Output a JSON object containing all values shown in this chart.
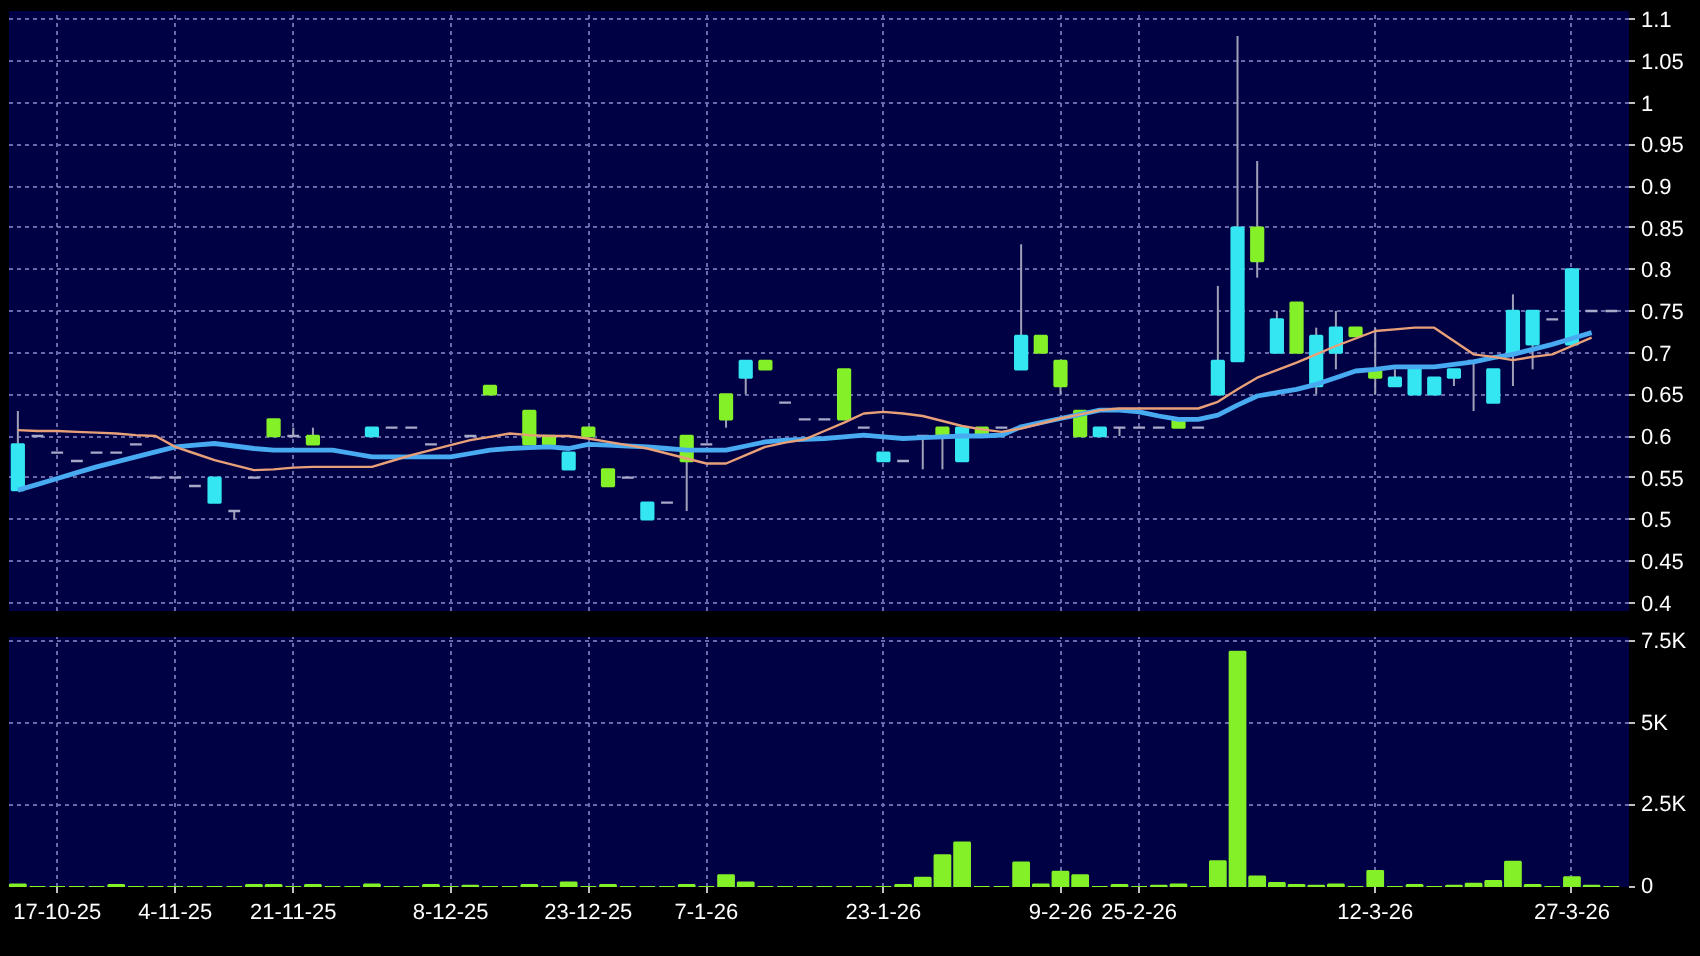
{
  "chart_data": [
    {
      "type": "candlestick",
      "categories": [
        null,
        null,
        null,
        null,
        null,
        null,
        null,
        null,
        null,
        null,
        null,
        null,
        null,
        null,
        null,
        null,
        null,
        null,
        null,
        null,
        null,
        null,
        null,
        null,
        null,
        null,
        null,
        null,
        null,
        null,
        null,
        null,
        null,
        null,
        null,
        null,
        null,
        null,
        null,
        null,
        null,
        null,
        null,
        null,
        null,
        null,
        null,
        null,
        null,
        null,
        null,
        null,
        null,
        null,
        null,
        null,
        null,
        null,
        null,
        null,
        null,
        null,
        null,
        null,
        null,
        null,
        null,
        null,
        null,
        null,
        null,
        null,
        null,
        null,
        null,
        null,
        null,
        null,
        null,
        null,
        null,
        null
      ],
      "ohlc": [
        [
          0.535,
          0.63,
          0.535,
          0.59
        ],
        [
          0.6,
          0.6,
          0.6,
          0.6
        ],
        [
          0.58,
          0.58,
          0.58,
          0.58
        ],
        [
          0.57,
          0.57,
          0.57,
          0.57
        ],
        [
          0.58,
          0.58,
          0.58,
          0.58
        ],
        [
          0.58,
          0.58,
          0.58,
          0.58
        ],
        [
          0.59,
          0.59,
          0.59,
          0.59
        ],
        [
          0.55,
          0.55,
          0.55,
          0.55
        ],
        [
          0.55,
          0.55,
          0.55,
          0.55
        ],
        [
          0.54,
          0.54,
          0.54,
          0.54
        ],
        [
          0.52,
          0.55,
          0.52,
          0.55
        ],
        [
          0.51,
          0.51,
          0.5,
          0.51
        ],
        [
          0.55,
          0.55,
          0.55,
          0.55
        ],
        [
          0.62,
          0.62,
          0.6,
          0.6
        ],
        [
          0.6,
          0.61,
          0.6,
          0.6
        ],
        [
          0.6,
          0.61,
          0.59,
          0.59
        ],
        null,
        null,
        [
          0.6,
          0.61,
          0.6,
          0.61
        ],
        [
          0.61,
          0.61,
          0.61,
          0.61
        ],
        [
          0.61,
          0.61,
          0.61,
          0.61
        ],
        [
          0.59,
          0.59,
          0.59,
          0.59
        ],
        null,
        [
          0.6,
          0.6,
          0.6,
          0.6
        ],
        [
          0.66,
          0.66,
          0.65,
          0.65
        ],
        null,
        [
          0.63,
          0.63,
          0.59,
          0.59
        ],
        [
          0.6,
          0.6,
          0.59,
          0.59
        ],
        [
          0.56,
          0.58,
          0.56,
          0.58
        ],
        [
          0.61,
          0.61,
          0.6,
          0.6
        ],
        [
          0.56,
          0.56,
          0.54,
          0.54
        ],
        [
          0.55,
          0.55,
          0.55,
          0.55
        ],
        [
          0.5,
          0.52,
          0.5,
          0.52
        ],
        [
          0.52,
          0.52,
          0.52,
          0.52
        ],
        [
          0.6,
          0.6,
          0.51,
          0.57
        ],
        [
          0.59,
          0.59,
          0.59,
          0.59
        ],
        [
          0.65,
          0.65,
          0.61,
          0.62
        ],
        [
          0.67,
          0.69,
          0.65,
          0.69
        ],
        [
          0.69,
          0.69,
          0.68,
          0.68
        ],
        [
          0.64,
          0.64,
          0.64,
          0.64
        ],
        [
          0.62,
          0.62,
          0.62,
          0.62
        ],
        [
          0.62,
          0.62,
          0.62,
          0.62
        ],
        [
          0.68,
          0.68,
          0.62,
          0.62
        ],
        [
          0.61,
          0.61,
          0.61,
          0.61
        ],
        [
          0.57,
          0.58,
          0.57,
          0.58
        ],
        [
          0.57,
          0.57,
          0.57,
          0.57
        ],
        [
          0.6,
          0.6,
          0.56,
          0.6
        ],
        [
          0.61,
          0.61,
          0.56,
          0.6
        ],
        [
          0.57,
          0.61,
          0.57,
          0.61
        ],
        [
          0.61,
          0.61,
          0.6,
          0.6
        ],
        [
          0.61,
          0.61,
          0.61,
          0.61
        ],
        [
          0.68,
          0.83,
          0.68,
          0.72
        ],
        [
          0.72,
          0.72,
          0.7,
          0.7
        ],
        [
          0.69,
          0.69,
          0.65,
          0.66
        ],
        [
          0.63,
          0.63,
          0.6,
          0.6
        ],
        [
          0.6,
          0.61,
          0.6,
          0.61
        ],
        [
          0.61,
          0.61,
          0.6,
          0.61
        ],
        [
          0.61,
          0.61,
          0.61,
          0.61
        ],
        [
          0.61,
          0.61,
          0.61,
          0.61
        ],
        [
          0.62,
          0.62,
          0.61,
          0.61
        ],
        [
          0.61,
          0.61,
          0.61,
          0.61
        ],
        [
          0.65,
          0.78,
          0.65,
          0.69
        ],
        [
          0.69,
          1.08,
          0.69,
          0.85
        ],
        [
          0.85,
          0.93,
          0.79,
          0.81
        ],
        [
          0.7,
          0.75,
          0.7,
          0.74
        ],
        [
          0.76,
          0.76,
          0.7,
          0.7
        ],
        [
          0.66,
          0.73,
          0.65,
          0.72
        ],
        [
          0.7,
          0.75,
          0.68,
          0.73
        ],
        [
          0.73,
          0.73,
          0.72,
          0.72
        ],
        [
          0.68,
          0.73,
          0.65,
          0.67
        ],
        [
          0.66,
          0.68,
          0.66,
          0.67
        ],
        [
          0.65,
          0.68,
          0.65,
          0.68
        ],
        [
          0.65,
          0.67,
          0.65,
          0.67
        ],
        [
          0.67,
          0.68,
          0.66,
          0.68
        ],
        [
          0.69,
          0.69,
          0.63,
          0.69
        ],
        [
          0.64,
          0.68,
          0.64,
          0.68
        ],
        [
          0.7,
          0.77,
          0.66,
          0.75
        ],
        [
          0.71,
          0.75,
          0.68,
          0.75
        ],
        [
          0.74,
          0.74,
          0.74,
          0.74
        ],
        [
          0.71,
          0.8,
          0.71,
          0.8
        ],
        [
          0.75,
          0.75,
          0.75,
          0.75
        ],
        [
          0.75,
          0.75,
          0.75,
          0.75
        ]
      ],
      "colors": [
        "#33e6f2",
        "#a8a8c8",
        "#a8a8c8",
        "#a8a8c8",
        "#a8a8c8",
        "#a8a8c8",
        "#a8a8c8",
        "#a8a8c8",
        "#a8a8c8",
        "#a8a8c8",
        "#33e6f2",
        "#a8a8c8",
        "#a8a8c8",
        "#84f028",
        "#a8a8c8",
        "#84f028",
        null,
        null,
        "#33e6f2",
        "#a8a8c8",
        "#a8a8c8",
        "#a8a8c8",
        null,
        "#a8a8c8",
        "#84f028",
        null,
        "#84f028",
        "#84f028",
        "#33e6f2",
        "#84f028",
        "#84f028",
        "#a8a8c8",
        "#33e6f2",
        "#a8a8c8",
        "#84f028",
        "#a8a8c8",
        "#84f028",
        "#33e6f2",
        "#84f028",
        "#a8a8c8",
        "#a8a8c8",
        "#a8a8c8",
        "#84f028",
        "#a8a8c8",
        "#33e6f2",
        "#a8a8c8",
        "#a8a8c8",
        "#84f028",
        "#33e6f2",
        "#84f028",
        "#a8a8c8",
        "#33e6f2",
        "#84f028",
        "#84f028",
        "#84f028",
        "#33e6f2",
        "#a8a8c8",
        "#a8a8c8",
        "#a8a8c8",
        "#84f028",
        "#a8a8c8",
        "#33e6f2",
        "#33e6f2",
        "#84f028",
        "#33e6f2",
        "#84f028",
        "#33e6f2",
        "#33e6f2",
        "#84f028",
        "#84f028",
        "#33e6f2",
        "#33e6f2",
        "#33e6f2",
        "#33e6f2",
        "#a8a8c8",
        "#33e6f2",
        "#33e6f2",
        "#33e6f2",
        "#a8a8c8",
        "#33e6f2",
        "#a8a8c8",
        "#a8a8c8"
      ],
      "series": [
        {
          "type": "line",
          "color": "#48aaf0",
          "values": [
            0.535,
            0.542,
            0.549,
            0.556,
            0.563,
            0.569,
            0.575,
            0.581,
            0.587,
            0.589,
            0.591,
            0.588,
            0.585,
            0.583,
            0.583,
            0.583,
            0.583,
            0.579,
            0.575,
            0.575,
            0.575,
            0.575,
            0.575,
            0.579,
            0.583,
            0.585,
            0.586,
            0.587,
            0.585,
            0.59,
            0.589,
            0.588,
            0.587,
            0.585,
            0.583,
            0.583,
            0.583,
            0.588,
            0.593,
            0.595,
            0.596,
            0.597,
            0.599,
            0.601,
            0.599,
            0.597,
            0.598,
            0.599,
            0.6,
            0.6,
            0.601,
            0.611,
            0.616,
            0.621,
            0.626,
            0.631,
            0.631,
            0.629,
            0.624,
            0.62,
            0.62,
            0.625,
            0.637,
            0.648,
            0.652,
            0.656,
            0.662,
            0.67,
            0.678,
            0.68,
            0.683,
            0.683,
            0.683,
            0.686,
            0.689,
            0.694,
            0.698,
            0.704,
            0.71,
            0.717,
            0.724,
            null
          ]
        },
        {
          "type": "line",
          "color": "#e8a078",
          "values": [
            0.607,
            0.606,
            0.606,
            0.605,
            0.604,
            0.603,
            0.601,
            0.6,
            0.587,
            0.579,
            0.571,
            0.565,
            0.559,
            0.56,
            0.562,
            0.563,
            0.563,
            0.563,
            0.563,
            0.57,
            0.577,
            0.583,
            0.589,
            0.595,
            0.599,
            0.603,
            0.601,
            0.6,
            0.6,
            0.597,
            0.593,
            0.589,
            0.585,
            0.579,
            0.573,
            0.567,
            0.567,
            0.577,
            0.587,
            0.592,
            0.596,
            0.606,
            0.616,
            0.627,
            0.629,
            0.627,
            0.624,
            0.618,
            0.612,
            0.608,
            0.605,
            0.609,
            0.615,
            0.621,
            0.626,
            0.631,
            0.633,
            0.633,
            0.633,
            0.633,
            0.633,
            0.641,
            0.656,
            0.67,
            0.679,
            0.688,
            0.698,
            0.708,
            0.717,
            0.726,
            0.728,
            0.73,
            0.73,
            0.714,
            0.698,
            0.695,
            0.691,
            0.695,
            0.698,
            0.708,
            0.718,
            null
          ]
        }
      ],
      "ylim": [
        0.39,
        1.11
      ],
      "yticks": [
        0.4,
        0.45,
        0.5,
        0.55,
        0.6,
        0.65,
        0.7,
        0.75,
        0.8,
        0.85,
        0.9,
        0.95,
        1,
        1.05,
        1.1
      ],
      "grid": true,
      "tick_labels": "y"
    },
    {
      "type": "bar",
      "categories": [
        null,
        null,
        "17-10-25",
        null,
        null,
        null,
        null,
        null,
        "4-11-25",
        null,
        null,
        null,
        null,
        null,
        "21-11-25",
        null,
        null,
        null,
        null,
        null,
        null,
        null,
        "8-12-25",
        null,
        null,
        null,
        null,
        null,
        null,
        "23-12-25",
        null,
        null,
        null,
        null,
        null,
        "7-1-26",
        null,
        null,
        null,
        null,
        null,
        null,
        null,
        null,
        "23-1-26",
        null,
        null,
        null,
        null,
        null,
        null,
        null,
        null,
        "9-2-26",
        null,
        null,
        null,
        "25-2-26",
        null,
        null,
        null,
        null,
        null,
        null,
        null,
        null,
        null,
        null,
        null,
        "12-3-26",
        null,
        null,
        null,
        null,
        null,
        null,
        null,
        null,
        null,
        "27-3-26",
        null,
        null
      ],
      "values": [
        80,
        0,
        0,
        0,
        0,
        60,
        0,
        0,
        0,
        0,
        0,
        0,
        60,
        60,
        0,
        60,
        0,
        0,
        80,
        0,
        0,
        60,
        0,
        40,
        0,
        0,
        60,
        0,
        140,
        0,
        60,
        0,
        0,
        0,
        60,
        0,
        360,
        140,
        0,
        0,
        0,
        0,
        0,
        0,
        0,
        60,
        280,
        970,
        1360,
        0,
        0,
        750,
        80,
        470,
        360,
        0,
        60,
        0,
        40,
        80,
        0,
        790,
        7200,
        320,
        120,
        60,
        40,
        80,
        0,
        490,
        0,
        60,
        0,
        40,
        100,
        180,
        770,
        60,
        0,
        300,
        40,
        0
      ],
      "color": "#84f028",
      "ylim": [
        0,
        7650
      ],
      "yticks": [
        0,
        {
          "value": 2500,
          "label": "2.5K"
        },
        {
          "value": 5000,
          "label": "5K"
        },
        {
          "value": 7500,
          "label": "7.5K"
        }
      ],
      "grid": true
    }
  ]
}
